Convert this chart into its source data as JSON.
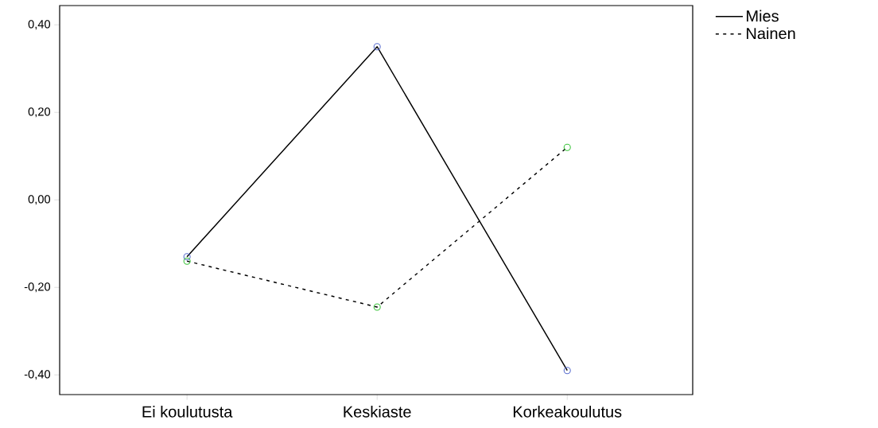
{
  "chart_data": {
    "type": "line",
    "categories": [
      "Ei koulutusta",
      "Keskiaste",
      "Korkeakoulutus"
    ],
    "series": [
      {
        "name": "Mies",
        "color": "#000000",
        "colors": [
          "#5b6fd0",
          "#5b6fd0",
          "#5b6fd0"
        ],
        "line_style": "solid",
        "values": [
          -0.13,
          0.35,
          -0.39
        ]
      },
      {
        "name": "Nainen",
        "color": "#000000",
        "colors": [
          "#3cc43c",
          "#3cc43c",
          "#3cc43c"
        ],
        "line_style": "dashed",
        "values": [
          -0.14,
          -0.245,
          0.12
        ]
      }
    ],
    "ylim": [
      -0.445,
      0.444
    ],
    "yticks": [
      {
        "value": -0.4,
        "label": "-0,40"
      },
      {
        "value": -0.2,
        "label": "-0,20"
      },
      {
        "value": 0,
        "label": "0,00"
      },
      {
        "value": 0.2,
        "label": "0,20"
      },
      {
        "value": 0.4,
        "label": "0,40"
      }
    ],
    "marker": "circle",
    "grid": false,
    "legend": "top right"
  }
}
